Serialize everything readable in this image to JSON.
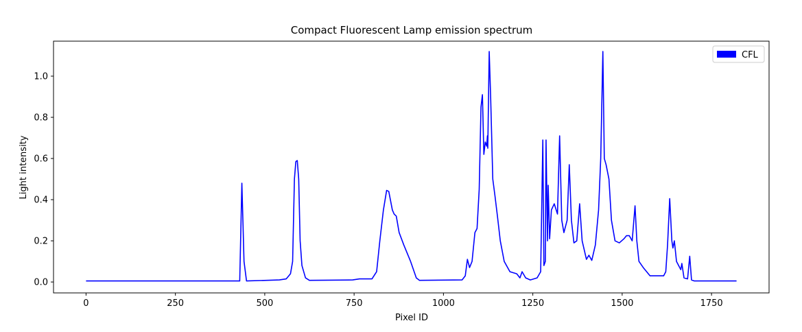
{
  "chart_data": {
    "type": "line",
    "title": "Compact Fluorescent Lamp emission spectrum",
    "x_label": "Pixel ID",
    "y_label": "Light intensity",
    "xlim": [
      -91,
      1911
    ],
    "ylim": [
      -0.053,
      1.17
    ],
    "xticks": [
      0,
      250,
      500,
      750,
      1000,
      1250,
      1500,
      1750
    ],
    "yticks": [
      {
        "value": 0,
        "label": "0.0"
      },
      {
        "value": 0.2,
        "label": "0.2"
      },
      {
        "value": 0.4,
        "label": "0.4"
      },
      {
        "value": 0.6,
        "label": "0.6"
      },
      {
        "value": 0.8,
        "label": "0.8"
      },
      {
        "value": 1.0,
        "label": "1.0"
      }
    ],
    "legend": "upper right",
    "x": [
      0,
      430,
      436,
      442,
      449,
      541,
      560,
      572,
      578,
      583,
      587,
      591,
      595,
      599,
      604,
      614,
      625,
      746,
      765,
      800,
      813,
      822,
      832,
      841,
      847,
      857,
      862,
      868,
      876,
      889,
      908,
      924,
      933,
      1052,
      1061,
      1067,
      1073,
      1080,
      1088,
      1094,
      1100,
      1105,
      1109,
      1113,
      1117,
      1121,
      1123,
      1124,
      1128,
      1132,
      1138,
      1144,
      1151,
      1159,
      1170,
      1186,
      1205,
      1214,
      1220,
      1230,
      1243,
      1262,
      1272,
      1278,
      1281,
      1285,
      1287,
      1291,
      1293,
      1297,
      1302,
      1310,
      1319,
      1325,
      1331,
      1337,
      1346,
      1352,
      1358,
      1365,
      1373,
      1381,
      1388,
      1400,
      1407,
      1415,
      1425,
      1434,
      1440,
      1446,
      1450,
      1455,
      1463,
      1470,
      1480,
      1492,
      1505,
      1512,
      1520,
      1528,
      1536,
      1541,
      1547,
      1559,
      1578,
      1616,
      1622,
      1627,
      1633,
      1639,
      1642,
      1646,
      1652,
      1664,
      1667,
      1673,
      1683,
      1689,
      1694,
      1702,
      1820
    ],
    "series": [
      {
        "name": "CFL",
        "color": "#0000ff",
        "values": [
          0.005,
          0.005,
          0.48,
          0.1,
          0.005,
          0.01,
          0.015,
          0.04,
          0.1,
          0.5,
          0.585,
          0.59,
          0.5,
          0.2,
          0.08,
          0.02,
          0.008,
          0.01,
          0.015,
          0.015,
          0.05,
          0.2,
          0.35,
          0.445,
          0.44,
          0.35,
          0.33,
          0.32,
          0.24,
          0.18,
          0.1,
          0.02,
          0.008,
          0.01,
          0.03,
          0.11,
          0.07,
          0.1,
          0.24,
          0.26,
          0.45,
          0.85,
          0.91,
          0.62,
          0.68,
          0.66,
          0.71,
          0.65,
          1.12,
          0.9,
          0.5,
          0.42,
          0.32,
          0.2,
          0.1,
          0.05,
          0.04,
          0.02,
          0.05,
          0.02,
          0.01,
          0.02,
          0.05,
          0.69,
          0.08,
          0.1,
          0.69,
          0.2,
          0.47,
          0.21,
          0.35,
          0.38,
          0.33,
          0.71,
          0.3,
          0.24,
          0.3,
          0.57,
          0.3,
          0.19,
          0.2,
          0.38,
          0.2,
          0.11,
          0.13,
          0.105,
          0.18,
          0.35,
          0.6,
          1.12,
          0.6,
          0.57,
          0.5,
          0.3,
          0.2,
          0.19,
          0.21,
          0.225,
          0.225,
          0.2,
          0.37,
          0.2,
          0.1,
          0.07,
          0.03,
          0.03,
          0.05,
          0.18,
          0.405,
          0.2,
          0.165,
          0.2,
          0.1,
          0.06,
          0.09,
          0.02,
          0.015,
          0.125,
          0.01,
          0.005,
          0.005
        ]
      }
    ]
  }
}
